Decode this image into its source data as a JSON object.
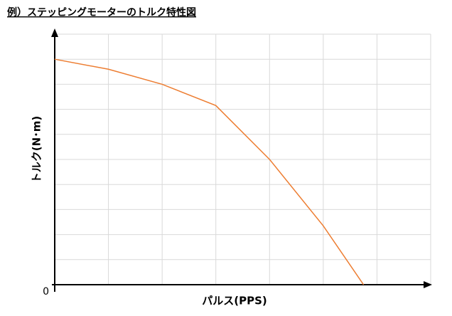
{
  "chart_data": {
    "type": "line",
    "title": "例）ステッピングモーターのトルク特性図",
    "x_label": "パルス(PPS)",
    "y_label": "トルク(N･m)",
    "x": [
      0,
      1,
      2,
      3,
      4,
      5,
      5.75
    ],
    "values": [
      9,
      8.6,
      8.0,
      7.15,
      5.0,
      2.35,
      0
    ],
    "color": "#ed7d31",
    "xlim": [
      0,
      7
    ],
    "ylim": [
      0,
      10
    ],
    "yticks": [
      0
    ],
    "grid": true
  }
}
